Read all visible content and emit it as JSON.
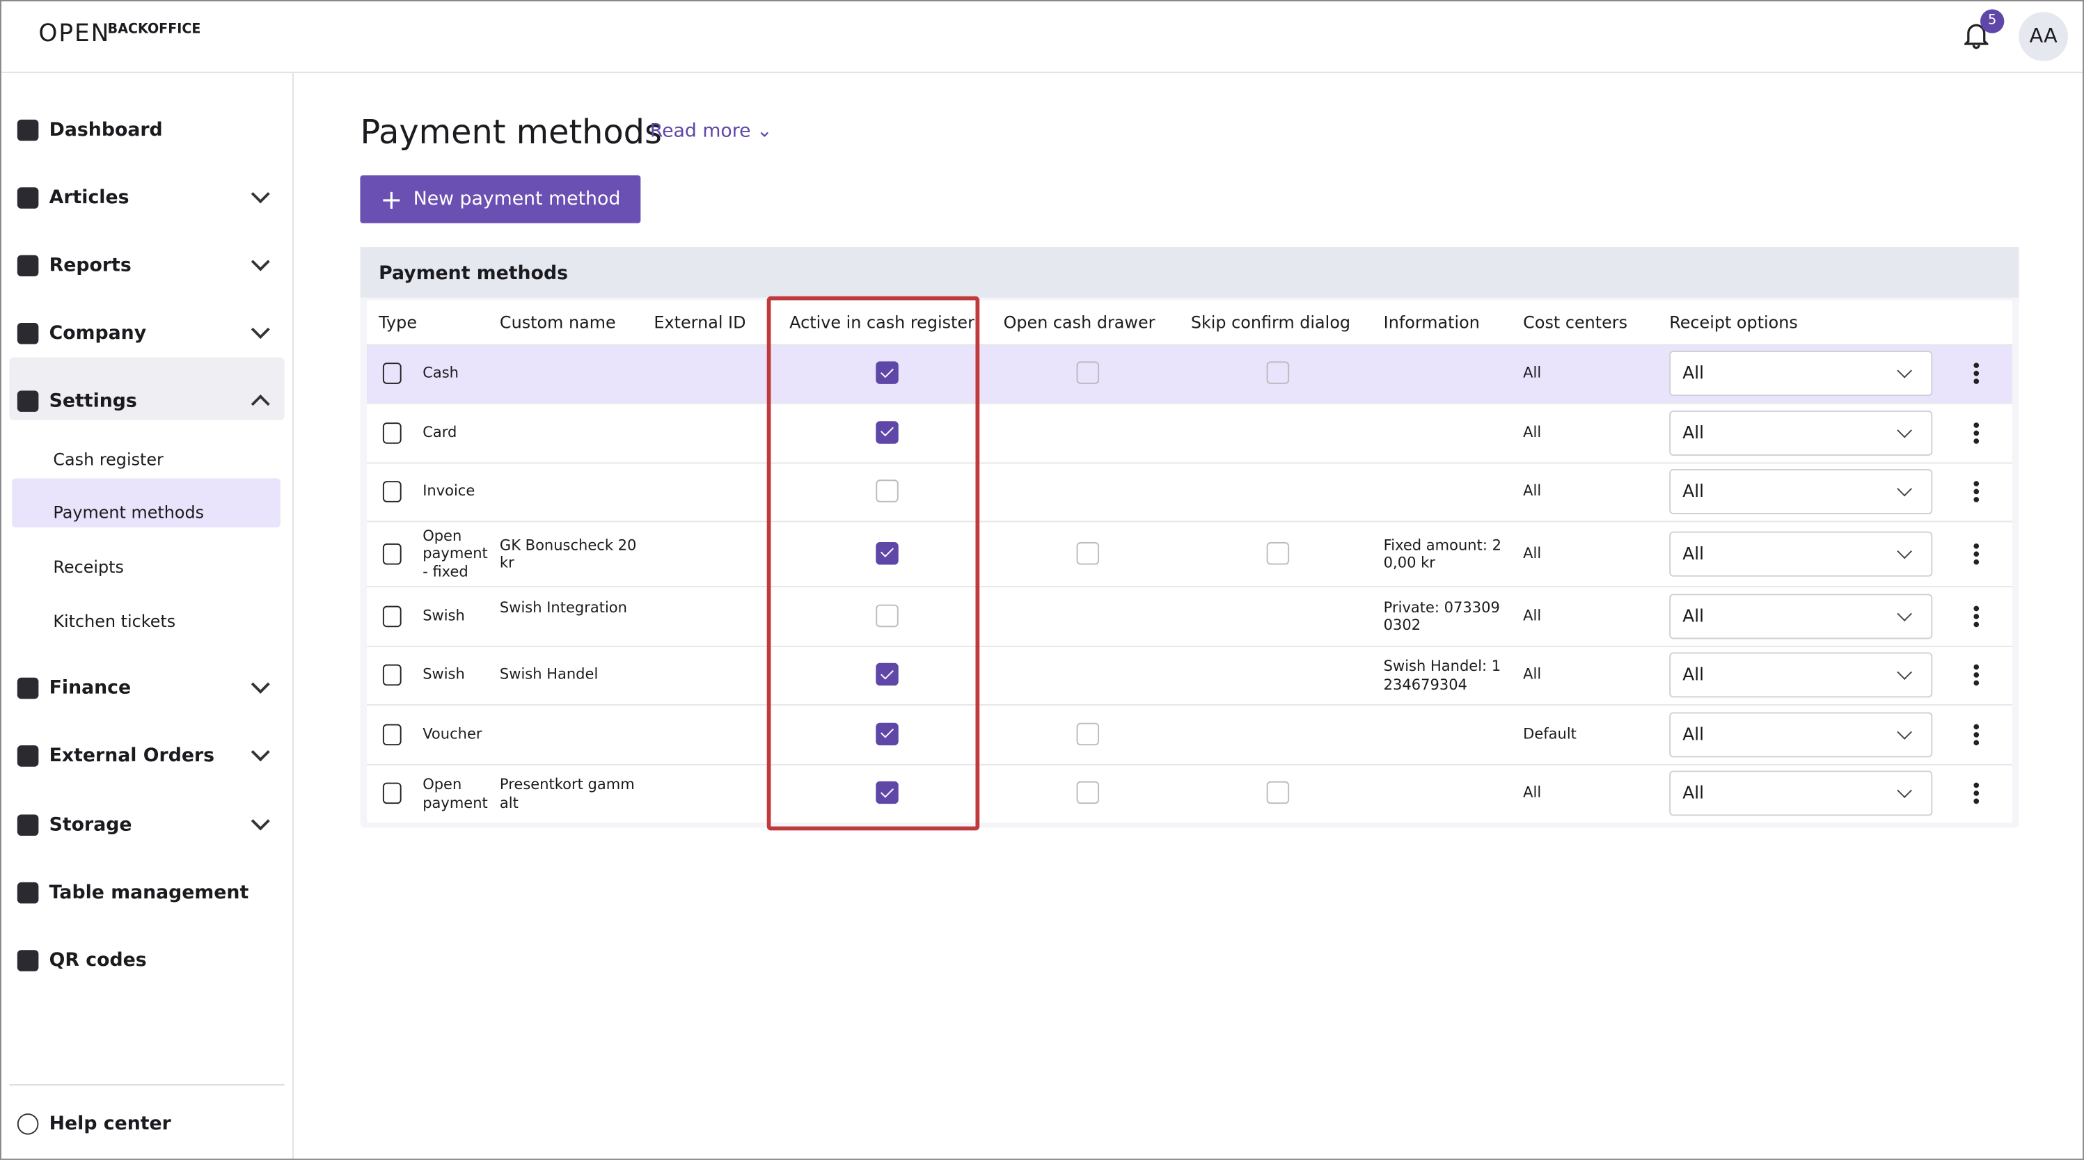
{
  "header": {
    "logo": "OPEN",
    "product": "BACKOFFICE",
    "notification_count": "5",
    "avatar": "AA"
  },
  "sidebar": {
    "items": [
      "Dashboard",
      "Articles",
      "Reports",
      "Company",
      "Settings"
    ],
    "settings_sub": [
      "Cash register",
      "Payment methods",
      "Receipts",
      "Kitchen tickets"
    ],
    "items_after": [
      "Finance",
      "External Orders",
      "Storage",
      "Table management",
      "QR codes"
    ],
    "help": "Help center"
  },
  "page": {
    "title": "Payment methods",
    "read_more": "Read more",
    "new_button": "New payment method"
  },
  "table": {
    "title": "Payment methods",
    "columns": [
      "Type",
      "Custom name",
      "External ID",
      "Active in cash register",
      "Open cash drawer",
      "Skip confirm dialog",
      "Information",
      "Cost centers",
      "Receipt options"
    ],
    "rows": [
      {
        "type": "Cash",
        "custom_name": "",
        "external_id": "",
        "active": true,
        "open_cash_drawer": false,
        "skip_confirm": false,
        "information": "",
        "cost_centers": "All",
        "receipt_options": "All"
      },
      {
        "type": "Card",
        "custom_name": "",
        "external_id": "",
        "active": true,
        "open_cash_drawer": null,
        "skip_confirm": null,
        "information": "",
        "cost_centers": "All",
        "receipt_options": "All"
      },
      {
        "type": "Invoice",
        "custom_name": "",
        "external_id": "",
        "active": false,
        "open_cash_drawer": null,
        "skip_confirm": null,
        "information": "",
        "cost_centers": "All",
        "receipt_options": "All"
      },
      {
        "type": "Open payment - fixed",
        "custom_name": "GK Bonuscheck 20kr",
        "external_id": "",
        "active": true,
        "open_cash_drawer": false,
        "skip_confirm": false,
        "information": "Fixed amount: 20,00 kr",
        "cost_centers": "All",
        "receipt_options": "All"
      },
      {
        "type": "Swish",
        "custom_name": "Swish Integration",
        "external_id": "",
        "active": false,
        "open_cash_drawer": null,
        "skip_confirm": null,
        "information": "Private: 0733090302",
        "cost_centers": "All",
        "receipt_options": "All"
      },
      {
        "type": "Swish",
        "custom_name": "Swish Handel",
        "external_id": "",
        "active": true,
        "open_cash_drawer": null,
        "skip_confirm": null,
        "information": "Swish Handel: 1234679304",
        "cost_centers": "All",
        "receipt_options": "All"
      },
      {
        "type": "Voucher",
        "custom_name": "",
        "external_id": "",
        "active": true,
        "open_cash_drawer": false,
        "skip_confirm": null,
        "information": "",
        "cost_centers": "Default",
        "receipt_options": "All"
      },
      {
        "type": "Open payment",
        "custom_name": "Presentkort gammalt",
        "external_id": "",
        "active": true,
        "open_cash_drawer": false,
        "skip_confirm": false,
        "information": "",
        "cost_centers": "All",
        "receipt_options": "All"
      }
    ]
  }
}
